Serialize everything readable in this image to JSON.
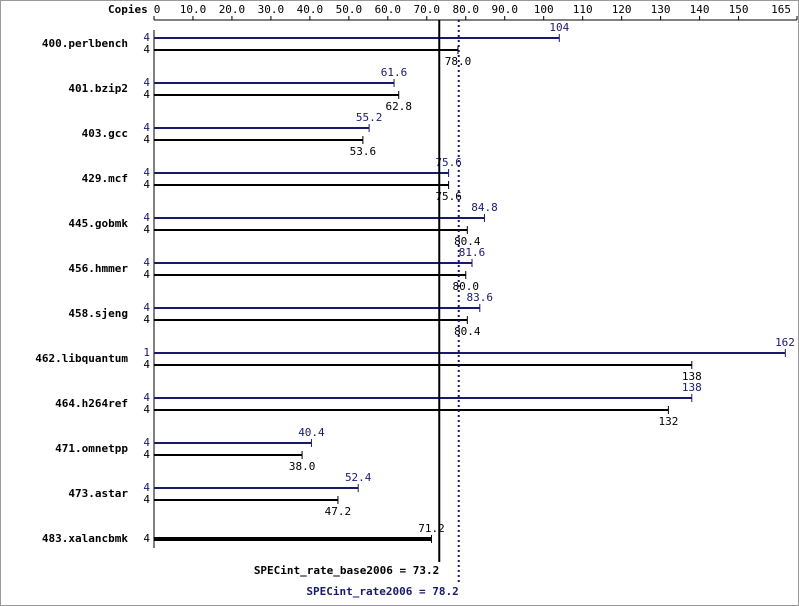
{
  "chart_data": {
    "type": "bar",
    "orientation": "horizontal",
    "copies_label": "Copies",
    "categories": [
      "400.perlbench",
      "401.bzip2",
      "403.gcc",
      "429.mcf",
      "445.gobmk",
      "456.hmmer",
      "458.sjeng",
      "462.libquantum",
      "464.h264ref",
      "471.omnetpp",
      "473.astar",
      "483.xalancbmk"
    ],
    "series": [
      {
        "color": "#191970",
        "copies": [
          4,
          4,
          4,
          4,
          4,
          4,
          4,
          1,
          4,
          4,
          4,
          null
        ],
        "values": [
          104,
          61.6,
          55.2,
          75.6,
          84.8,
          81.6,
          83.6,
          162,
          138,
          40.4,
          52.4,
          null
        ],
        "value_labels": [
          "104",
          "61.6",
          "55.2",
          "75.6",
          "84.8",
          "81.6",
          "83.6",
          "162",
          "138",
          "40.4",
          "52.4",
          null
        ]
      },
      {
        "color": "#000000",
        "copies": [
          4,
          4,
          4,
          4,
          4,
          4,
          4,
          4,
          4,
          4,
          4,
          4
        ],
        "values": [
          78.0,
          62.8,
          53.6,
          75.6,
          80.4,
          80.0,
          80.4,
          138,
          132,
          38.0,
          47.2,
          71.2
        ],
        "value_labels": [
          "78.0",
          "62.8",
          "53.6",
          "75.6",
          "80.4",
          "80.0",
          "80.4",
          "138",
          "132",
          "38.0",
          "47.2",
          "71.2"
        ]
      }
    ],
    "xlim": [
      0,
      165
    ],
    "xticks": [
      0,
      {
        "value": 10,
        "label": "10.0"
      },
      {
        "value": 20,
        "label": "20.0"
      },
      {
        "value": 30,
        "label": "30.0"
      },
      {
        "value": 40,
        "label": "40.0"
      },
      {
        "value": 50,
        "label": "50.0"
      },
      {
        "value": 60,
        "label": "60.0"
      },
      {
        "value": 70,
        "label": "70.0"
      },
      {
        "value": 80,
        "label": "80.0"
      },
      {
        "value": 90,
        "label": "90.0"
      },
      100,
      110,
      120,
      130,
      140,
      150,
      165
    ],
    "reference_lines": [
      {
        "value": 73.2,
        "label": "SPECint_rate_base2006 = 73.2",
        "color": "#000000"
      },
      {
        "value": 78.2,
        "label": "SPECint_rate2006 = 78.2",
        "color": "#191970"
      }
    ]
  }
}
